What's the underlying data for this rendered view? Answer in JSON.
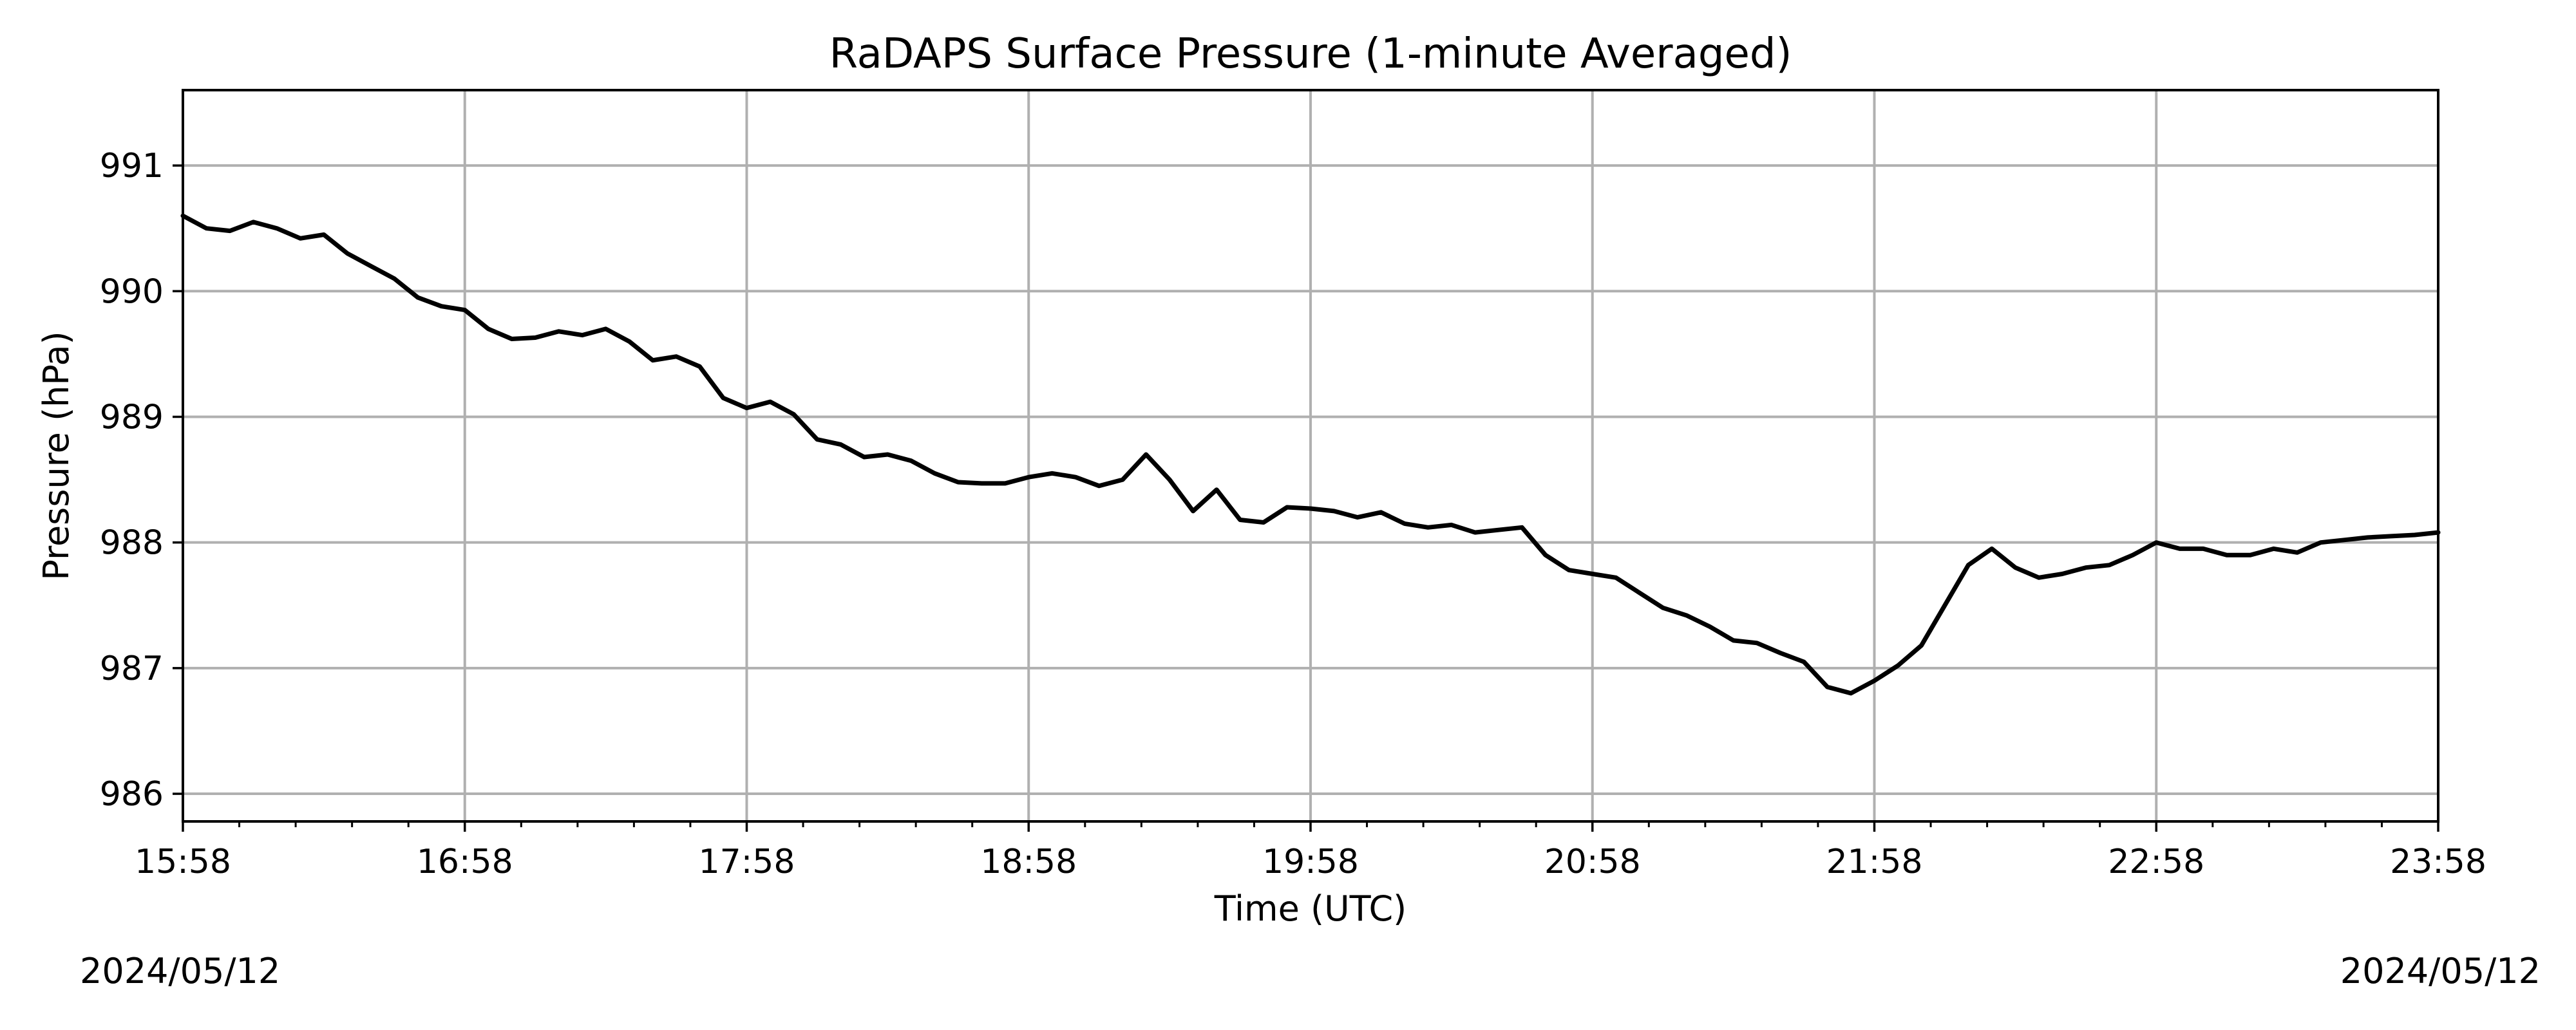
{
  "colors": {
    "line": "#000000",
    "grid": "#b0b0b0",
    "background": "#ffffff"
  },
  "footer": {
    "left_date": "2024/05/12",
    "right_date": "2024/05/12"
  },
  "chart_data": {
    "type": "line",
    "title": "RaDAPS Surface Pressure (1-minute Averaged)",
    "xlabel": "Time (UTC)",
    "ylabel": "Pressure (hPa)",
    "grid": true,
    "xlim": [
      "15:58",
      "23:58"
    ],
    "ylim": [
      985.78,
      991.6
    ],
    "x_ticks": [
      "15:58",
      "16:58",
      "17:58",
      "18:58",
      "19:58",
      "20:58",
      "21:58",
      "22:58",
      "23:58"
    ],
    "y_ticks": [
      "986",
      "987",
      "988",
      "989",
      "990",
      "991"
    ],
    "series": [
      {
        "x": [
          "15:58",
          "16:03",
          "16:08",
          "16:13",
          "16:18",
          "16:23",
          "16:28",
          "16:33",
          "16:38",
          "16:43",
          "16:48",
          "16:53",
          "16:58",
          "17:03",
          "17:08",
          "17:13",
          "17:18",
          "17:23",
          "17:28",
          "17:33",
          "17:38",
          "17:43",
          "17:48",
          "17:53",
          "17:58",
          "18:03",
          "18:08",
          "18:13",
          "18:18",
          "18:23",
          "18:28",
          "18:33",
          "18:38",
          "18:43",
          "18:48",
          "18:53",
          "18:58",
          "19:03",
          "19:08",
          "19:13",
          "19:18",
          "19:23",
          "19:28",
          "19:33",
          "19:38",
          "19:43",
          "19:48",
          "19:53",
          "19:58",
          "20:03",
          "20:08",
          "20:13",
          "20:18",
          "20:23",
          "20:28",
          "20:33",
          "20:38",
          "20:43",
          "20:48",
          "20:53",
          "20:58",
          "21:03",
          "21:08",
          "21:13",
          "21:18",
          "21:23",
          "21:28",
          "21:33",
          "21:38",
          "21:43",
          "21:48",
          "21:53",
          "21:58",
          "22:03",
          "22:08",
          "22:13",
          "22:18",
          "22:23",
          "22:28",
          "22:33",
          "22:38",
          "22:43",
          "22:48",
          "22:53",
          "22:58",
          "23:03",
          "23:08",
          "23:13",
          "23:18",
          "23:23",
          "23:28",
          "23:33",
          "23:38",
          "23:43",
          "23:48",
          "23:53",
          "23:58"
        ],
        "y": [
          990.6,
          990.5,
          990.48,
          990.55,
          990.5,
          990.42,
          990.45,
          990.3,
          990.2,
          990.1,
          989.95,
          989.88,
          989.85,
          989.7,
          989.62,
          989.63,
          989.68,
          989.65,
          989.7,
          989.6,
          989.45,
          989.48,
          989.4,
          989.15,
          989.07,
          989.12,
          989.02,
          988.82,
          988.78,
          988.68,
          988.7,
          988.65,
          988.55,
          988.48,
          988.47,
          988.47,
          988.52,
          988.55,
          988.52,
          988.45,
          988.5,
          988.7,
          988.5,
          988.25,
          988.42,
          988.18,
          988.16,
          988.28,
          988.27,
          988.25,
          988.2,
          988.24,
          988.15,
          988.12,
          988.14,
          988.08,
          988.1,
          988.12,
          987.9,
          987.78,
          987.75,
          987.72,
          987.6,
          987.48,
          987.42,
          987.33,
          987.22,
          987.2,
          987.12,
          987.05,
          986.85,
          986.8,
          986.9,
          987.02,
          987.18,
          987.5,
          987.82,
          987.95,
          987.8,
          987.72,
          987.75,
          987.8,
          987.82,
          987.9,
          988.0,
          987.95,
          987.95,
          987.9,
          987.9,
          987.95,
          987.92,
          988.0,
          988.02,
          988.04,
          988.05,
          988.06,
          988.08
        ]
      }
    ]
  }
}
